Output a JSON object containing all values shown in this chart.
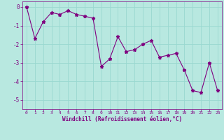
{
  "x": [
    0,
    1,
    2,
    3,
    4,
    5,
    6,
    7,
    8,
    9,
    10,
    11,
    12,
    13,
    14,
    15,
    16,
    17,
    18,
    19,
    20,
    21,
    22,
    23
  ],
  "y": [
    0.0,
    -1.7,
    -0.8,
    -0.3,
    -0.4,
    -0.2,
    -0.4,
    -0.5,
    -0.6,
    -3.2,
    -2.8,
    -1.6,
    -2.4,
    -2.3,
    -2.0,
    -1.8,
    -2.7,
    -2.6,
    -2.5,
    -3.4,
    -4.5,
    -4.6,
    -3.0,
    -4.5
  ],
  "line_color": "#800080",
  "marker": "*",
  "bg_color": "#b8e8e0",
  "grid_color": "#99d8d0",
  "xlabel": "Windchill (Refroidissement éolien,°C)",
  "ylim": [
    -5.5,
    0.3
  ],
  "xlim": [
    -0.5,
    23.5
  ],
  "yticks": [
    0,
    -1,
    -2,
    -3,
    -4,
    -5
  ],
  "xticks": [
    0,
    1,
    2,
    3,
    4,
    5,
    6,
    7,
    8,
    9,
    10,
    11,
    12,
    13,
    14,
    15,
    16,
    17,
    18,
    19,
    20,
    21,
    22,
    23
  ],
  "tick_color": "#800080",
  "label_color": "#800080",
  "axis_color": "#800080",
  "figsize": [
    3.2,
    2.0
  ],
  "dpi": 100
}
